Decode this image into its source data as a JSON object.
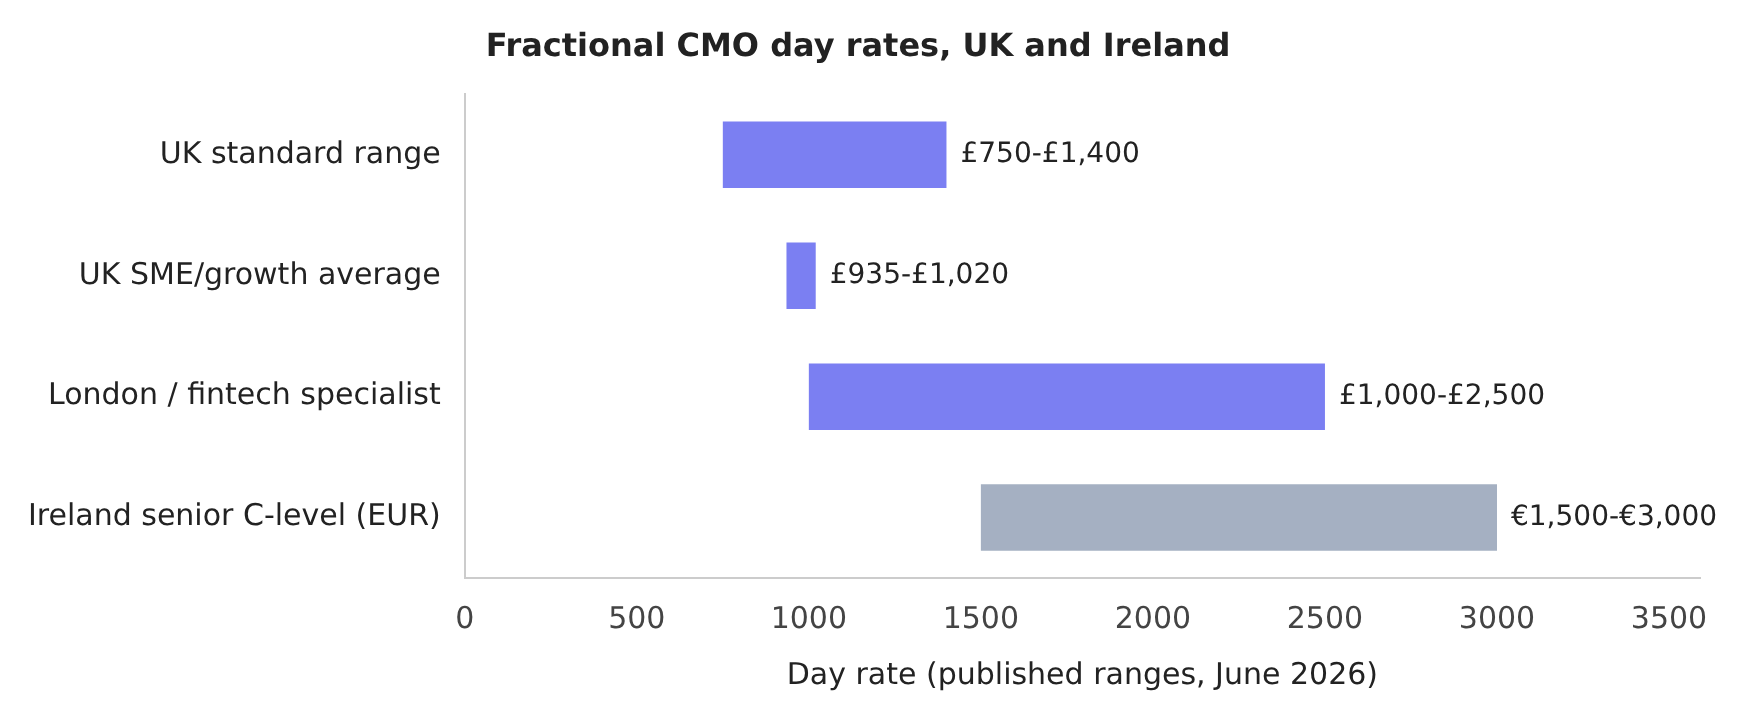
{
  "chart_data": {
    "type": "bar",
    "orientation": "horizontal",
    "title": "Fractional CMO day rates, UK and Ireland",
    "xlabel": "Day rate (published ranges, June 2026)",
    "categories": [
      "UK standard range",
      "UK SME/growth average",
      "London / fintech specialist",
      "Ireland senior C-level (EUR)"
    ],
    "base": [
      750,
      935,
      1000,
      1500
    ],
    "values": [
      650,
      85,
      1500,
      1500
    ],
    "colors": [
      "#7b7ff2",
      "#7b7ff2",
      "#7b7ff2",
      "#a5b0c2"
    ],
    "value_labels": [
      "£750-£1,400",
      "£935-£1,020",
      "£1,000-£2,500",
      "€1,500-€3,000"
    ],
    "xlim": [
      0,
      3590
    ],
    "xticks": [
      0,
      500,
      1000,
      1500,
      2000,
      2500,
      3000,
      3500
    ],
    "grid": false,
    "legend": false
  }
}
